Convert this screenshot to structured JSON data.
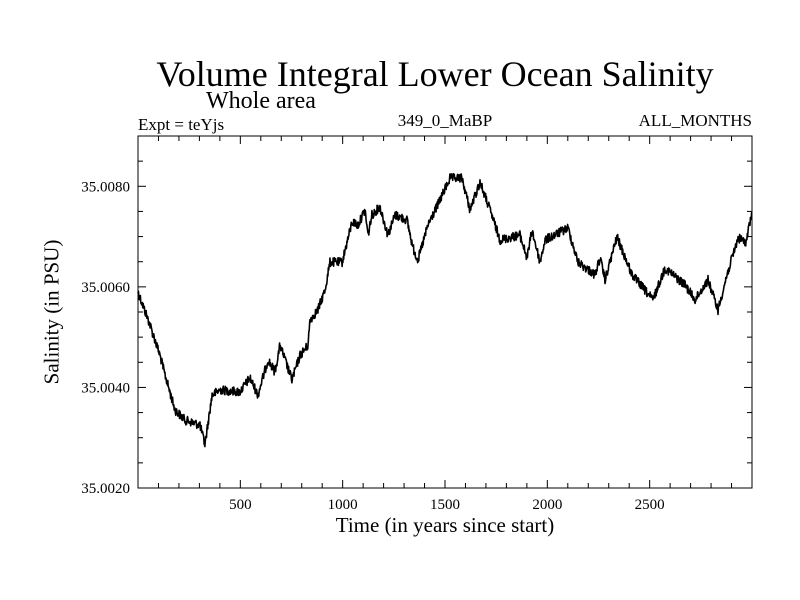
{
  "chart_data": {
    "type": "line",
    "title": "Volume Integral Lower Ocean Salinity",
    "subtitle": "Whole area",
    "annotations": {
      "left": "Expt = teYjs",
      "center": "349_0_MaBP",
      "right": "ALL_MONTHS"
    },
    "xlabel": "Time (in years since start)",
    "ylabel": "Salinity (in PSU)",
    "xlim": [
      0,
      3000
    ],
    "ylim": [
      35.002,
      35.009
    ],
    "x_ticks": [
      500,
      1000,
      1500,
      2000,
      2500
    ],
    "x_tick_labels": [
      "500",
      "1000",
      "1500",
      "2000",
      "2500"
    ],
    "x_minor_step": 100,
    "y_ticks": [
      35.002,
      35.004,
      35.006,
      35.008
    ],
    "y_tick_labels": [
      "35.0020",
      "35.0040",
      "35.0060",
      "35.0080"
    ],
    "y_minor_step": 0.0005,
    "grid": false,
    "legend": "none",
    "series": [
      {
        "name": "Lower Ocean Salinity",
        "color": "#000000",
        "x": [
          0,
          59,
          107,
          132,
          181,
          230,
          303,
          327,
          362,
          401,
          498,
          547,
          586,
          635,
          669,
          694,
          752,
          792,
          831,
          840,
          879,
          914,
          938,
          997,
          1046,
          1075,
          1109,
          1124,
          1143,
          1182,
          1221,
          1256,
          1314,
          1344,
          1368,
          1417,
          1476,
          1524,
          1583,
          1622,
          1671,
          1720,
          1769,
          1866,
          1901,
          1925,
          1964,
          1989,
          2101,
          2150,
          2233,
          2257,
          2282,
          2340,
          2414,
          2516,
          2575,
          2673,
          2722,
          2785,
          2834,
          2878,
          2932,
          2971,
          3000
        ],
        "y": [
          35.0059,
          35.00524,
          35.00464,
          35.00425,
          35.00355,
          35.00335,
          35.00325,
          35.00286,
          35.00385,
          35.00395,
          35.00391,
          35.00419,
          35.00385,
          35.00455,
          35.00431,
          35.00484,
          35.00415,
          35.00464,
          35.00484,
          35.00534,
          35.00554,
          35.00594,
          35.00649,
          35.00649,
          35.00729,
          35.00723,
          35.00753,
          35.00703,
          35.00743,
          35.00759,
          35.00703,
          35.00743,
          35.00733,
          35.00677,
          35.00653,
          35.00723,
          35.00773,
          35.00816,
          35.00816,
          35.00753,
          35.00808,
          35.00753,
          35.00693,
          35.00703,
          35.00657,
          35.00713,
          35.00649,
          35.00693,
          35.00717,
          35.00649,
          35.00624,
          35.00657,
          35.00614,
          35.00699,
          35.00624,
          35.00574,
          35.00637,
          35.00604,
          35.00574,
          35.00614,
          35.00554,
          35.00624,
          35.00697,
          35.00689,
          35.00749
        ]
      }
    ]
  }
}
